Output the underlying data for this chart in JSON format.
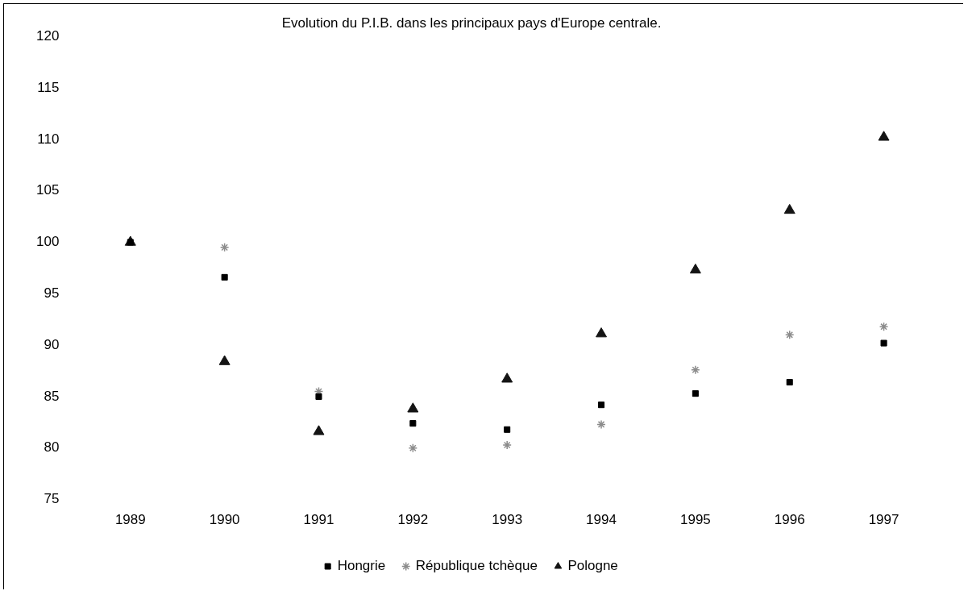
{
  "chart_data": {
    "type": "scatter",
    "title": "Evolution du P.I.B. dans les principaux pays d'Europe centrale.",
    "categories": [
      "1989",
      "1990",
      "1991",
      "1992",
      "1993",
      "1994",
      "1995",
      "1996",
      "1997"
    ],
    "ylim": [
      75,
      120
    ],
    "yticks": [
      75,
      80,
      85,
      90,
      95,
      100,
      105,
      110,
      115,
      120
    ],
    "grid": false,
    "legend": "bottom",
    "series": [
      {
        "name": "Hongrie",
        "color": "#000000",
        "marker": "square",
        "values": [
          100,
          96.6,
          85.0,
          82.4,
          81.8,
          84.2,
          85.3,
          86.4,
          90.2
        ]
      },
      {
        "name": "République tchèque",
        "color": "#8c8c8c",
        "marker": "cross",
        "values": [
          null,
          99.5,
          85.5,
          80.0,
          80.3,
          82.3,
          87.6,
          91.0,
          91.8
        ]
      },
      {
        "name": "Pologne",
        "color": "#141414",
        "marker": "triangle",
        "values": [
          100,
          88.4,
          81.6,
          83.8,
          86.7,
          91.1,
          97.3,
          103.1,
          110.2
        ]
      }
    ]
  }
}
